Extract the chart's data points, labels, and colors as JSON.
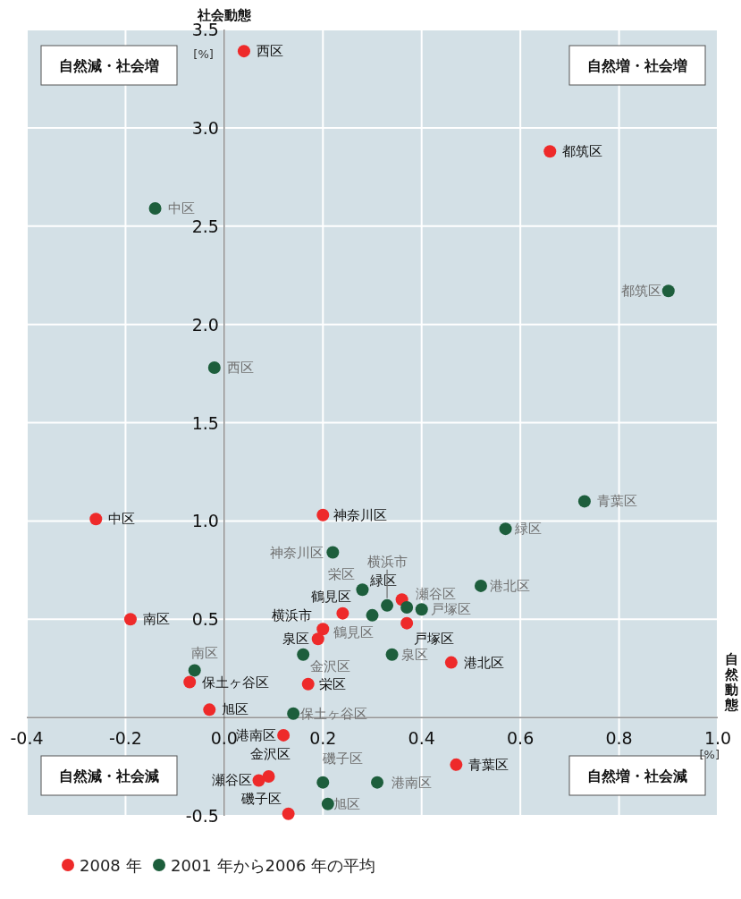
{
  "chart_data": {
    "type": "scatter",
    "xlabel": "自然動態",
    "ylabel": "社会動態",
    "xlim": [
      -0.4,
      1.0
    ],
    "ylim": [
      -0.5,
      3.5
    ],
    "xticks": [
      -0.4,
      -0.2,
      {
        "value": 0,
        "label": "0.0"
      },
      0.2,
      0.4,
      0.6,
      0.8,
      {
        "value": 1,
        "label": "1.0"
      }
    ],
    "yticks": [
      -0.5,
      {
        "value": 0,
        "label": null
      },
      0.5,
      {
        "value": 1,
        "label": "1.0"
      },
      1.5,
      {
        "value": 2,
        "label": "2.0"
      },
      2.5,
      {
        "value": 3,
        "label": "3.0"
      },
      3.5
    ],
    "grid": true,
    "legend": "bottom",
    "marker": "circle",
    "series": [
      {
        "name": "2008 年",
        "color": "#ee2a2a",
        "x": [
          0.04,
          0.66,
          -0.26,
          0.2,
          -0.19,
          0.36,
          0.24,
          0.2,
          0.19,
          0.37,
          0.46,
          -0.07,
          -0.03,
          0.17,
          0.12,
          0.09,
          0.07,
          0.13,
          0.47
        ],
        "values": [
          3.39,
          2.88,
          1.01,
          1.03,
          0.5,
          0.6,
          0.53,
          0.45,
          0.4,
          0.48,
          0.28,
          0.18,
          0.04,
          0.17,
          -0.09,
          -0.3,
          -0.32,
          -0.49,
          -0.24
        ]
      },
      {
        "name": "2001 年から2006 年の平均",
        "color": "#1d5e3c",
        "x": [
          -0.14,
          0.9,
          -0.02,
          0.73,
          0.57,
          0.22,
          0.52,
          0.28,
          0.33,
          0.37,
          0.4,
          0.3,
          0.16,
          0.34,
          -0.06,
          0.14,
          0.2,
          0.31,
          0.21
        ],
        "values": [
          2.59,
          2.17,
          1.78,
          1.1,
          0.96,
          0.84,
          0.67,
          0.65,
          0.57,
          0.56,
          0.55,
          0.52,
          0.32,
          0.32,
          0.24,
          0.02,
          -0.33,
          -0.33,
          -0.44
        ]
      }
    ],
    "annotations": [
      "自然減・社会増",
      "自然増・社会増",
      "自然減・社会減",
      "自然増・社会減",
      "[%]",
      "[%]",
      {
        "text": "西区",
        "x": 0.04,
        "y": 3.39
      },
      {
        "text": "都筑区",
        "x": 0.66,
        "y": 2.88
      },
      {
        "text": "中区",
        "x": -0.26,
        "y": 1.01
      },
      {
        "text": "神奈川区",
        "x": 0.2,
        "y": 1.03
      },
      {
        "text": "南区",
        "x": -0.19,
        "y": 0.5
      },
      {
        "text": "緑区",
        "x": 0.36,
        "y": 0.6
      },
      {
        "text": "鶴見区",
        "x": 0.24,
        "y": 0.53
      },
      {
        "text": "横浜市",
        "x": 0.2,
        "y": 0.45
      },
      {
        "text": "泉区",
        "x": 0.19,
        "y": 0.4
      },
      {
        "text": "戸塚区",
        "x": 0.37,
        "y": 0.48
      },
      {
        "text": "港北区",
        "x": 0.46,
        "y": 0.28
      },
      {
        "text": "保土ヶ谷区",
        "x": -0.07,
        "y": 0.18
      },
      {
        "text": "旭区",
        "x": -0.03,
        "y": 0.04
      },
      {
        "text": "栄区",
        "x": 0.17,
        "y": 0.17
      },
      {
        "text": "港南区",
        "x": 0.12,
        "y": -0.09
      },
      {
        "text": "金沢区",
        "x": 0.09,
        "y": -0.3
      },
      {
        "text": "瀬谷区",
        "x": 0.07,
        "y": -0.32
      },
      {
        "text": "磯子区",
        "x": 0.13,
        "y": -0.49
      },
      {
        "text": "青葉区",
        "x": 0.47,
        "y": -0.24
      },
      {
        "text": "中区",
        "x": -0.14,
        "y": 2.59
      },
      {
        "text": "都筑区",
        "x": 0.9,
        "y": 2.17
      },
      {
        "text": "西区",
        "x": -0.02,
        "y": 1.78
      },
      {
        "text": "青葉区",
        "x": 0.73,
        "y": 1.1
      },
      {
        "text": "緑区",
        "x": 0.57,
        "y": 0.96
      },
      {
        "text": "神奈川区",
        "x": 0.22,
        "y": 0.84
      },
      {
        "text": "港北区",
        "x": 0.52,
        "y": 0.67
      },
      {
        "text": "栄区",
        "x": 0.28,
        "y": 0.65
      },
      {
        "text": "横浜市",
        "x": 0.33,
        "y": 0.57
      },
      {
        "text": "瀬谷区",
        "x": 0.37,
        "y": 0.56
      },
      {
        "text": "戸塚区",
        "x": 0.4,
        "y": 0.55
      },
      {
        "text": "鶴見区",
        "x": 0.3,
        "y": 0.52
      },
      {
        "text": "金沢区",
        "x": 0.16,
        "y": 0.32
      },
      {
        "text": "泉区",
        "x": 0.34,
        "y": 0.32
      },
      {
        "text": "南区",
        "x": -0.06,
        "y": 0.24
      },
      {
        "text": "保土ヶ谷区",
        "x": 0.14,
        "y": 0.02
      },
      {
        "text": "磯子区",
        "x": 0.2,
        "y": -0.33
      },
      {
        "text": "港南区",
        "x": 0.31,
        "y": -0.33
      },
      {
        "text": "旭区",
        "x": 0.21,
        "y": -0.44
      }
    ]
  }
}
